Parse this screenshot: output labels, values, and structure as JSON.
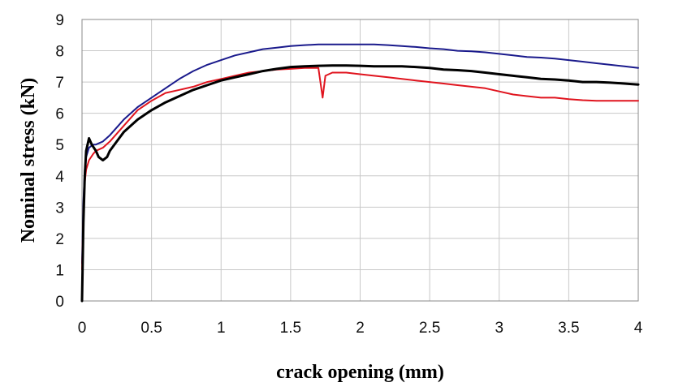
{
  "chart_data": {
    "type": "line",
    "title": "",
    "xlabel": "crack opening (mm)",
    "ylabel": "Nominal stress (kN)",
    "xlim": [
      0,
      4
    ],
    "ylim": [
      0,
      9
    ],
    "x_ticks": [
      "0",
      "0.5",
      "1",
      "1.5",
      "2",
      "2.5",
      "3",
      "3.5",
      "4"
    ],
    "y_ticks": [
      "0",
      "1",
      "2",
      "3",
      "4",
      "5",
      "6",
      "7",
      "8",
      "9"
    ],
    "grid": true,
    "legend": "none",
    "series": [
      {
        "color": "#1a1a8c",
        "x": [
          0,
          0.01,
          0.02,
          0.03,
          0.05,
          0.08,
          0.1,
          0.15,
          0.2,
          0.3,
          0.4,
          0.5,
          0.6,
          0.7,
          0.8,
          0.9,
          1.0,
          1.1,
          1.2,
          1.3,
          1.4,
          1.5,
          1.6,
          1.7,
          1.8,
          1.9,
          2.0,
          2.1,
          2.2,
          2.3,
          2.4,
          2.5,
          2.6,
          2.7,
          2.8,
          2.9,
          3.0,
          3.1,
          3.2,
          3.3,
          3.4,
          3.5,
          3.6,
          3.7,
          3.8,
          3.9,
          4.0
        ],
        "y": [
          1.2,
          3.2,
          4.2,
          4.6,
          4.9,
          5.0,
          5.0,
          5.1,
          5.3,
          5.8,
          6.2,
          6.5,
          6.8,
          7.1,
          7.35,
          7.55,
          7.7,
          7.85,
          7.95,
          8.05,
          8.1,
          8.15,
          8.18,
          8.2,
          8.2,
          8.2,
          8.2,
          8.2,
          8.18,
          8.15,
          8.12,
          8.08,
          8.05,
          8.0,
          7.98,
          7.95,
          7.9,
          7.85,
          7.8,
          7.78,
          7.75,
          7.7,
          7.65,
          7.6,
          7.55,
          7.5,
          7.45
        ]
      },
      {
        "color": "#e0141e",
        "x": [
          0,
          0.01,
          0.02,
          0.03,
          0.05,
          0.08,
          0.1,
          0.15,
          0.2,
          0.3,
          0.4,
          0.5,
          0.6,
          0.7,
          0.8,
          0.9,
          1.0,
          1.1,
          1.2,
          1.3,
          1.4,
          1.5,
          1.6,
          1.7,
          1.73,
          1.75,
          1.8,
          1.9,
          2.0,
          2.1,
          2.2,
          2.3,
          2.4,
          2.5,
          2.6,
          2.7,
          2.8,
          2.9,
          3.0,
          3.1,
          3.2,
          3.3,
          3.4,
          3.5,
          3.6,
          3.7,
          3.8,
          3.9,
          4.0
        ],
        "y": [
          1.0,
          2.8,
          3.8,
          4.2,
          4.5,
          4.7,
          4.8,
          4.9,
          5.1,
          5.6,
          6.1,
          6.4,
          6.65,
          6.75,
          6.85,
          7.0,
          7.1,
          7.2,
          7.3,
          7.35,
          7.4,
          7.42,
          7.45,
          7.45,
          6.5,
          7.2,
          7.3,
          7.3,
          7.25,
          7.2,
          7.15,
          7.1,
          7.05,
          7.0,
          6.95,
          6.9,
          6.85,
          6.8,
          6.7,
          6.6,
          6.55,
          6.5,
          6.5,
          6.45,
          6.42,
          6.4,
          6.4,
          6.4,
          6.4
        ]
      },
      {
        "color": "#000000",
        "x": [
          0,
          0.01,
          0.02,
          0.03,
          0.05,
          0.07,
          0.1,
          0.12,
          0.15,
          0.18,
          0.2,
          0.25,
          0.3,
          0.4,
          0.5,
          0.6,
          0.7,
          0.8,
          0.9,
          1.0,
          1.1,
          1.2,
          1.3,
          1.4,
          1.5,
          1.6,
          1.7,
          1.8,
          1.9,
          2.0,
          2.1,
          2.2,
          2.3,
          2.4,
          2.5,
          2.6,
          2.7,
          2.8,
          2.9,
          3.0,
          3.1,
          3.2,
          3.3,
          3.4,
          3.5,
          3.6,
          3.7,
          3.8,
          3.9,
          4.0
        ],
        "y": [
          0,
          2.5,
          4.0,
          4.8,
          5.2,
          5.0,
          4.8,
          4.6,
          4.5,
          4.6,
          4.8,
          5.1,
          5.4,
          5.8,
          6.1,
          6.35,
          6.55,
          6.75,
          6.9,
          7.05,
          7.15,
          7.25,
          7.35,
          7.42,
          7.48,
          7.5,
          7.52,
          7.53,
          7.53,
          7.52,
          7.5,
          7.5,
          7.5,
          7.48,
          7.45,
          7.4,
          7.38,
          7.35,
          7.3,
          7.25,
          7.2,
          7.15,
          7.1,
          7.08,
          7.05,
          7.0,
          7.0,
          6.98,
          6.95,
          6.92
        ]
      }
    ]
  }
}
